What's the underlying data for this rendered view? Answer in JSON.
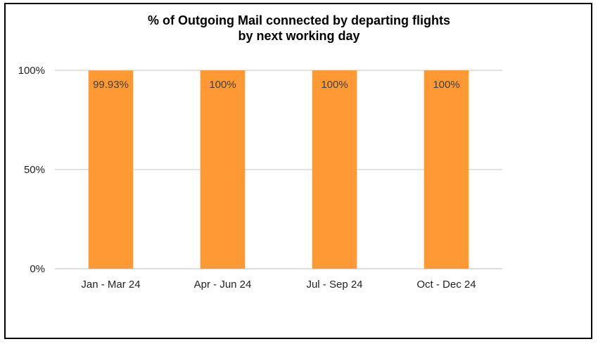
{
  "chart_data": {
    "type": "bar",
    "title_line1": "% of Outgoing Mail connected by departing flights",
    "title_line2": "by next working day",
    "categories": [
      "Jan - Mar 24",
      "Apr - Jun 24",
      "Jul - Sep 24",
      "Oct - Dec 24"
    ],
    "values": [
      99.93,
      100,
      100,
      100
    ],
    "data_labels": [
      "99.93%",
      "100%",
      "100%",
      "100%"
    ],
    "y_ticks": [
      0,
      50,
      100
    ],
    "y_tick_labels": [
      "0%",
      "50%",
      "100%"
    ],
    "ylim": [
      0,
      100
    ],
    "grid": true,
    "legend": "none",
    "bar_color": "#FF9933",
    "grid_color": "#D9D9D9"
  }
}
